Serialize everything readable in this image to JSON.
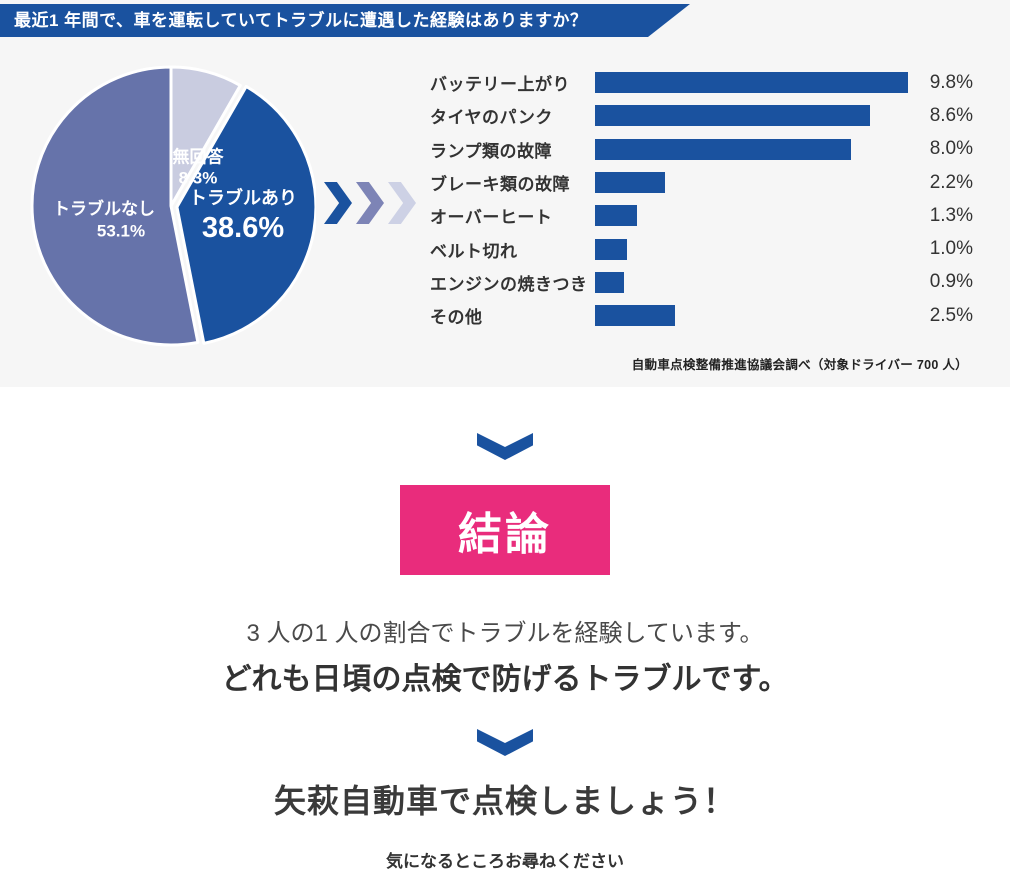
{
  "header": {
    "title": "最近1 年間で、車を運転していてトラブルに遭遇した経験はありますか？"
  },
  "colors": {
    "primary_blue": "#1a529f",
    "slate_purple": "#6673aa",
    "light_lavender": "#c9cce0",
    "accent_pink": "#e92c7c",
    "section_bg": "#f6f6f6",
    "text_dark": "#333333"
  },
  "flow": {
    "chevron_colors": [
      "#1a529f",
      "#7d84b6",
      "#cdd1e5"
    ]
  },
  "chart_data": [
    {
      "type": "pie",
      "start_angle_deg": 0,
      "direction": "clockwise",
      "slices": [
        {
          "name": "no-answer",
          "label": "無回答",
          "value": 8.3,
          "display": "8.3%",
          "color": "#c9cce0",
          "exploded": false
        },
        {
          "name": "trouble-yes",
          "label": "トラブルあり",
          "value": 38.6,
          "display": "38.6%",
          "color": "#1a529f",
          "exploded": true
        },
        {
          "name": "trouble-no",
          "label": "トラブルなし",
          "value": 53.1,
          "display": "53.1%",
          "color": "#6673aa",
          "exploded": false
        }
      ]
    },
    {
      "type": "bar",
      "orientation": "horizontal",
      "categories": [
        "バッテリー上がり",
        "タイヤのパンク",
        "ランプ類の故障",
        "ブレーキ類の故障",
        "オーバーヒート",
        "ベルト切れ",
        "エンジンの焼きつき",
        "その他"
      ],
      "values": [
        9.8,
        8.6,
        8.0,
        2.2,
        1.3,
        1.0,
        0.9,
        2.5
      ],
      "value_labels": [
        "9.8%",
        "8.6%",
        "8.0%",
        "2.2%",
        "1.3%",
        "1.0%",
        "0.9%",
        "2.5%"
      ],
      "xlim": [
        0,
        10
      ],
      "bar_color": "#1a529f",
      "grid": false,
      "legend": false
    }
  ],
  "source_note": "自動車点検整備推進協議会調べ（対象ドライバー 700 人）",
  "conclusion": {
    "badge": "結論",
    "line1": "3 人の1 人の割合でトラブルを経験しています。",
    "line2": "どれも日頃の点検で防げるトラブルです。",
    "cta": "矢萩自動車で点検しましょう！",
    "footnote": "気になるところお尋ねください"
  }
}
